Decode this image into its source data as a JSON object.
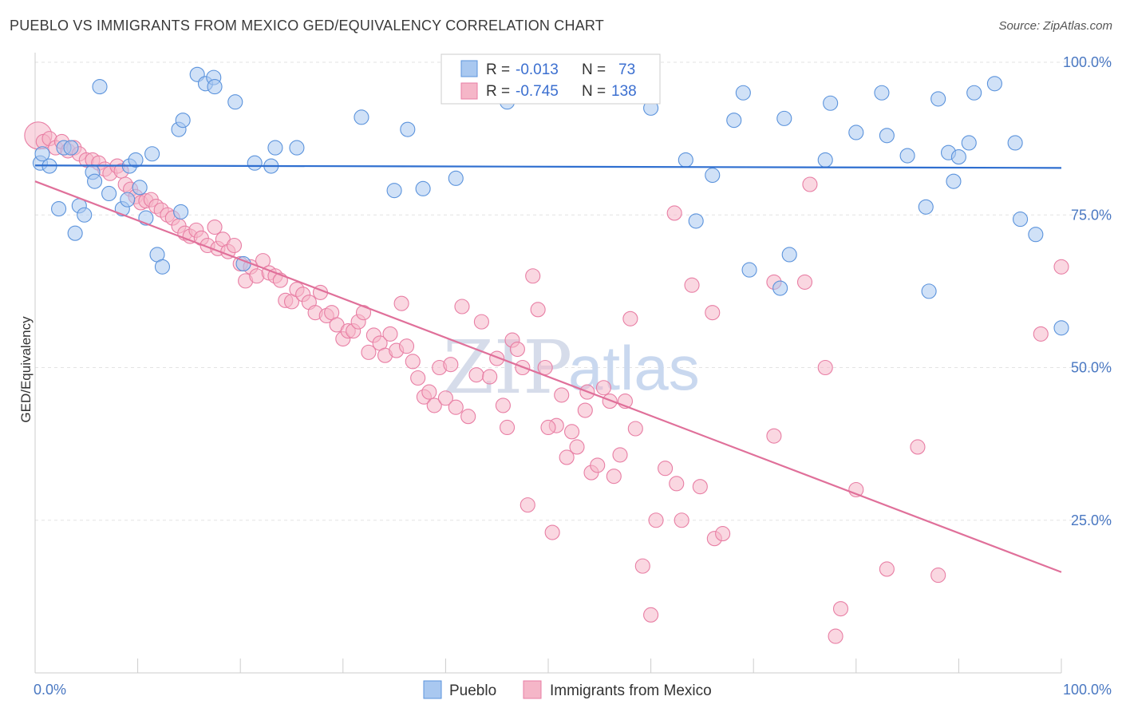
{
  "header": {
    "title": "PUEBLO VS IMMIGRANTS FROM MEXICO GED/EQUIVALENCY CORRELATION CHART",
    "source": "Source: ZipAtlas.com"
  },
  "watermark": {
    "zip": "ZIP",
    "atlas": "atlas"
  },
  "legend_box": {
    "r_label": "R =",
    "n_label": "N =",
    "rows": [
      {
        "r": "-0.013",
        "n": "73",
        "color": "#a9c8f0"
      },
      {
        "r": "-0.745",
        "n": "138",
        "color": "#f5b6c8"
      }
    ]
  },
  "bottom_legend": [
    {
      "label": "Pueblo",
      "color": "#a9c8f0"
    },
    {
      "label": "Immigrants from Mexico",
      "color": "#f5b6c8"
    }
  ],
  "chart_data": {
    "type": "scatter",
    "title": "PUEBLO VS IMMIGRANTS FROM MEXICO GED/EQUIVALENCY CORRELATION CHART",
    "xlabel": "",
    "ylabel": "GED/Equivalency",
    "xlim": [
      0,
      100
    ],
    "ylim": [
      0,
      100
    ],
    "x_tick_labels": [
      "0.0%",
      "100.0%"
    ],
    "y_ticks": [
      25,
      50,
      75,
      100
    ],
    "y_tick_labels": [
      "25.0%",
      "50.0%",
      "75.0%",
      "100.0%"
    ],
    "grid": true,
    "legend_position": "top-center",
    "series": [
      {
        "name": "Pueblo",
        "color": "#5b93dc",
        "fill": "#a9c8f0",
        "trend": {
          "x": [
            0,
            100
          ],
          "y": [
            83.1,
            82.7
          ],
          "color": "#2f6fd0"
        },
        "points": [
          [
            0.5,
            83.5
          ],
          [
            0.7,
            85
          ],
          [
            1.4,
            83
          ],
          [
            2.3,
            76
          ],
          [
            2.8,
            86
          ],
          [
            3.5,
            86
          ],
          [
            3.9,
            72
          ],
          [
            4.3,
            76.5
          ],
          [
            4.8,
            75
          ],
          [
            5.6,
            82
          ],
          [
            5.8,
            80.5
          ],
          [
            6.3,
            96
          ],
          [
            7.2,
            78.5
          ],
          [
            8.5,
            76
          ],
          [
            9,
            77.5
          ],
          [
            9.2,
            83
          ],
          [
            9.8,
            84
          ],
          [
            10.2,
            79.5
          ],
          [
            10.8,
            74.5
          ],
          [
            11.4,
            85
          ],
          [
            11.9,
            68.5
          ],
          [
            12.4,
            66.5
          ],
          [
            14,
            89
          ],
          [
            14.4,
            90.5
          ],
          [
            14.2,
            75.5
          ],
          [
            15.8,
            98
          ],
          [
            16.6,
            96.5
          ],
          [
            17.4,
            97.5
          ],
          [
            17.5,
            96
          ],
          [
            19.5,
            93.5
          ],
          [
            20.3,
            67
          ],
          [
            21.4,
            83.5
          ],
          [
            23,
            83
          ],
          [
            23.4,
            86
          ],
          [
            25.5,
            86
          ],
          [
            31.8,
            91
          ],
          [
            35,
            79
          ],
          [
            36.3,
            89
          ],
          [
            37.8,
            79.3
          ],
          [
            41,
            81
          ],
          [
            46,
            93.5
          ],
          [
            47,
            95
          ],
          [
            60,
            92.5
          ],
          [
            63.4,
            84
          ],
          [
            64.4,
            74
          ],
          [
            66,
            81.5
          ],
          [
            68.1,
            90.5
          ],
          [
            69,
            95
          ],
          [
            69.6,
            66
          ],
          [
            72.6,
            63
          ],
          [
            73,
            90.8
          ],
          [
            73.5,
            68.5
          ],
          [
            77,
            84
          ],
          [
            77.5,
            93.3
          ],
          [
            80,
            88.5
          ],
          [
            82.5,
            95
          ],
          [
            83,
            88
          ],
          [
            85,
            84.7
          ],
          [
            86.8,
            76.3
          ],
          [
            87.1,
            62.5
          ],
          [
            88,
            94
          ],
          [
            89,
            85.2
          ],
          [
            89.5,
            80.5
          ],
          [
            90,
            84.5
          ],
          [
            91,
            86.8
          ],
          [
            91.5,
            95
          ],
          [
            93.5,
            96.5
          ],
          [
            95.5,
            86.8
          ],
          [
            96,
            74.3
          ],
          [
            97.5,
            71.8
          ],
          [
            100,
            56.5
          ]
        ]
      },
      {
        "name": "Immigrants from Mexico",
        "color": "#e87ea4",
        "fill": "#f5b6c8",
        "trend": {
          "x": [
            0,
            100
          ],
          "y": [
            80.5,
            16.5
          ],
          "color": "#e0709a"
        },
        "points": [
          [
            0.3,
            88
          ],
          [
            0.8,
            87
          ],
          [
            1.4,
            87.5
          ],
          [
            2,
            86
          ],
          [
            2.6,
            87
          ],
          [
            3.2,
            85.5
          ],
          [
            3.8,
            86
          ],
          [
            4.3,
            85
          ],
          [
            5,
            84
          ],
          [
            5.6,
            84
          ],
          [
            6.2,
            83.5
          ],
          [
            6.8,
            82.5
          ],
          [
            7.3,
            81.8
          ],
          [
            8,
            83
          ],
          [
            8.4,
            82.2
          ],
          [
            8.8,
            80
          ],
          [
            9.3,
            79.2
          ],
          [
            9.8,
            78
          ],
          [
            10.3,
            77
          ],
          [
            10.8,
            77.3
          ],
          [
            11.3,
            77.5
          ],
          [
            11.8,
            76.4
          ],
          [
            12.3,
            75.8
          ],
          [
            12.9,
            75
          ],
          [
            13.4,
            74.5
          ],
          [
            14,
            73.2
          ],
          [
            14.6,
            72
          ],
          [
            15.1,
            71.5
          ],
          [
            15.7,
            72.5
          ],
          [
            16.2,
            71.2
          ],
          [
            16.8,
            70
          ],
          [
            17.5,
            73
          ],
          [
            17.8,
            69.5
          ],
          [
            18.3,
            71
          ],
          [
            18.8,
            69
          ],
          [
            19.4,
            70
          ],
          [
            20,
            67
          ],
          [
            20.5,
            64.2
          ],
          [
            21,
            66.5
          ],
          [
            21.6,
            65
          ],
          [
            22.2,
            67.5
          ],
          [
            22.8,
            65.5
          ],
          [
            23.4,
            65
          ],
          [
            23.9,
            64.3
          ],
          [
            24.4,
            61
          ],
          [
            25,
            60.8
          ],
          [
            25.5,
            62.8
          ],
          [
            26.1,
            62
          ],
          [
            26.7,
            60.7
          ],
          [
            27.3,
            59
          ],
          [
            27.8,
            62.3
          ],
          [
            28.4,
            58.5
          ],
          [
            28.9,
            59
          ],
          [
            29.4,
            57
          ],
          [
            30,
            54.7
          ],
          [
            30.5,
            56
          ],
          [
            31,
            56
          ],
          [
            31.5,
            57.5
          ],
          [
            32,
            59
          ],
          [
            32.5,
            52.5
          ],
          [
            33,
            55.3
          ],
          [
            33.6,
            54
          ],
          [
            34.1,
            52
          ],
          [
            34.6,
            55.5
          ],
          [
            35.2,
            52.8
          ],
          [
            35.7,
            60.5
          ],
          [
            36.2,
            53.5
          ],
          [
            36.8,
            51
          ],
          [
            37.3,
            48.3
          ],
          [
            37.9,
            45.2
          ],
          [
            38.4,
            46
          ],
          [
            38.9,
            43.8
          ],
          [
            39.4,
            50
          ],
          [
            40,
            45
          ],
          [
            40.5,
            50.5
          ],
          [
            41,
            43.5
          ],
          [
            41.6,
            60
          ],
          [
            42.2,
            42
          ],
          [
            43,
            48.8
          ],
          [
            43.5,
            57.5
          ],
          [
            44.3,
            48.5
          ],
          [
            45,
            51.5
          ],
          [
            45.6,
            43.8
          ],
          [
            46,
            40.2
          ],
          [
            46.5,
            54.5
          ],
          [
            47,
            53
          ],
          [
            47.5,
            50
          ],
          [
            48,
            27.5
          ],
          [
            48.5,
            65
          ],
          [
            49,
            59.5
          ],
          [
            49.7,
            50
          ],
          [
            50.4,
            23
          ],
          [
            50.8,
            40.5
          ],
          [
            51.3,
            45.5
          ],
          [
            51.8,
            35.3
          ],
          [
            52.3,
            39.5
          ],
          [
            52.8,
            37
          ],
          [
            53.6,
            43
          ],
          [
            53.8,
            46
          ],
          [
            54.2,
            32.8
          ],
          [
            54.8,
            34
          ],
          [
            55.4,
            46.7
          ],
          [
            56,
            44.5
          ],
          [
            56.4,
            32.2
          ],
          [
            57,
            35.7
          ],
          [
            57.5,
            44.5
          ],
          [
            58,
            58
          ],
          [
            58.5,
            40
          ],
          [
            59.2,
            17.5
          ],
          [
            60,
            9.5
          ],
          [
            60.5,
            25
          ],
          [
            61.4,
            33.5
          ],
          [
            62.3,
            75.3
          ],
          [
            62.5,
            31
          ],
          [
            63,
            25
          ],
          [
            64,
            63.5
          ],
          [
            64.8,
            30.5
          ],
          [
            66,
            59
          ],
          [
            66.2,
            22
          ],
          [
            67,
            22.8
          ],
          [
            72,
            64
          ],
          [
            75,
            64
          ],
          [
            75.5,
            80
          ],
          [
            77,
            50
          ],
          [
            78,
            6
          ],
          [
            78.5,
            10.5
          ],
          [
            80,
            30
          ],
          [
            83,
            17
          ],
          [
            86,
            37
          ],
          [
            88,
            16
          ],
          [
            98,
            55.5
          ],
          [
            100,
            66.5
          ],
          [
            72,
            38.8
          ],
          [
            54,
            100
          ],
          [
            50,
            40.2
          ]
        ]
      }
    ]
  }
}
